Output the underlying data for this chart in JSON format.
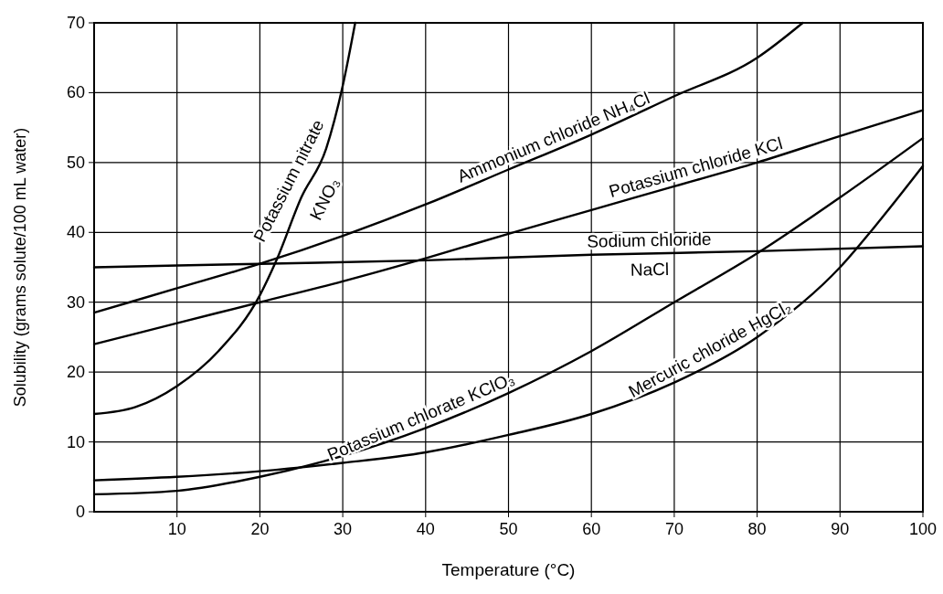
{
  "chart_data": {
    "type": "line",
    "xlabel": "Temperature (°C)",
    "ylabel": "Solubility (grams solute/100 mL water)",
    "xlim": [
      0,
      100
    ],
    "ylim": [
      0,
      70
    ],
    "xticks": [
      10,
      20,
      30,
      40,
      50,
      60,
      70,
      80,
      90,
      100
    ],
    "yticks": [
      0,
      10,
      20,
      30,
      40,
      50,
      60,
      70
    ],
    "grid": true,
    "line_style": "solid",
    "series": [
      {
        "name": "Potassium nitrate KNO₃",
        "color": "#000000",
        "x": [
          0,
          5,
          10,
          15,
          20,
          22,
          25,
          28,
          30,
          31.5
        ],
        "values": [
          14,
          15,
          18,
          23,
          31,
          36,
          45,
          52,
          61,
          70
        ]
      },
      {
        "name": "Ammonium chloride NH₄Cl",
        "color": "#000000",
        "x": [
          0,
          10,
          20,
          30,
          40,
          50,
          60,
          70,
          80,
          85.5
        ],
        "values": [
          28.5,
          32,
          35.5,
          39.5,
          44,
          49,
          54,
          59.5,
          65,
          70
        ]
      },
      {
        "name": "Potassium chloride KCl",
        "color": "#000000",
        "x": [
          0,
          10,
          20,
          30,
          40,
          50,
          60,
          70,
          80,
          90,
          100
        ],
        "values": [
          24,
          27,
          30,
          33,
          36.3,
          39.8,
          43.2,
          46.6,
          50,
          53.8,
          57.5
        ]
      },
      {
        "name": "Sodium chloride NaCl",
        "color": "#000000",
        "x": [
          0,
          20,
          40,
          60,
          80,
          100
        ],
        "values": [
          35,
          35.5,
          36,
          36.8,
          37.3,
          38
        ]
      },
      {
        "name": "Potassium chlorate KClO₃",
        "color": "#000000",
        "x": [
          0,
          10,
          20,
          30,
          40,
          50,
          60,
          70,
          80,
          90,
          100
        ],
        "values": [
          2.5,
          3,
          5,
          8,
          12,
          17,
          23,
          30,
          37,
          45,
          53.5
        ]
      },
      {
        "name": "Mercuric chloride HgCl₂",
        "color": "#000000",
        "x": [
          0,
          10,
          20,
          30,
          40,
          50,
          60,
          70,
          80,
          90,
          95,
          100
        ],
        "values": [
          4.5,
          5,
          5.8,
          7,
          8.5,
          11,
          14,
          18.5,
          25,
          35,
          42,
          49.5
        ]
      }
    ]
  }
}
